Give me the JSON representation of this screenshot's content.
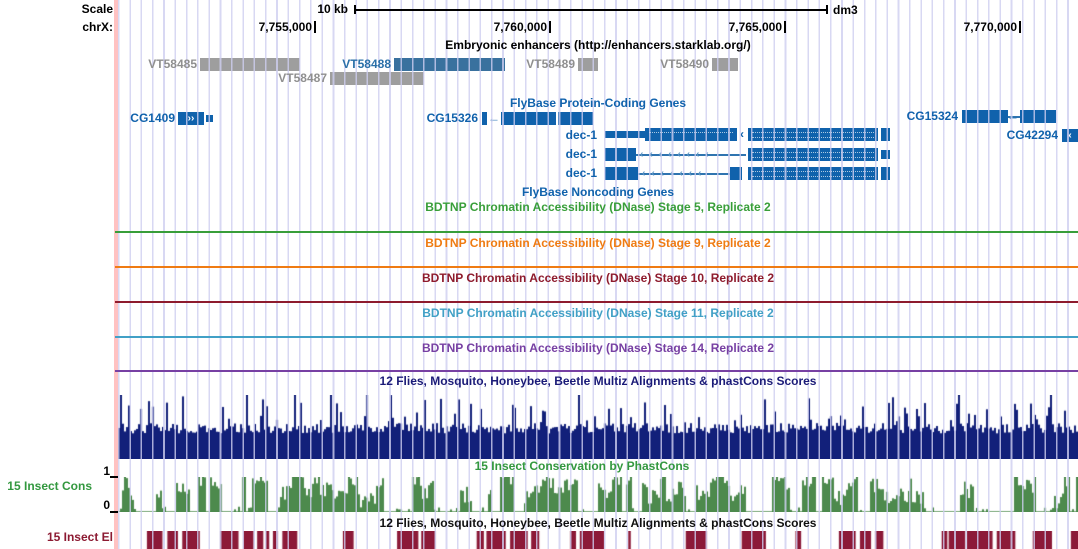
{
  "ruler": {
    "scale_label": "Scale",
    "scale_value": "10 kb",
    "assembly": "dm3",
    "chrom": "chrX:",
    "ticks": [
      {
        "label": "7,755,000"
      },
      {
        "label": "7,760,000"
      },
      {
        "label": "7,765,000"
      },
      {
        "label": "7,770,000"
      }
    ]
  },
  "enhancers": {
    "title": "Embryonic enhancers (http://enhancers.starklab.org/)",
    "items": [
      {
        "name": "VT58485"
      },
      {
        "name": "VT58488"
      },
      {
        "name": "VT58489"
      },
      {
        "name": "VT58490"
      },
      {
        "name": "VT58487"
      }
    ]
  },
  "genes": {
    "title": "FlyBase Protein-Coding Genes",
    "cg1409": "CG1409",
    "cg15326": "CG15326",
    "dec1": "dec-1",
    "cg15324": "CG15324",
    "cg42294": "CG42294"
  },
  "noncoding": {
    "title": "FlyBase Noncoding Genes"
  },
  "bdtnp": [
    {
      "title": "BDTNP Chromatin Accessibility (DNase) Stage 5, Replicate 2",
      "color": "#389E39"
    },
    {
      "title": "BDTNP Chromatin Accessibility (DNase) Stage 9, Replicate 2",
      "color": "#EF7B12"
    },
    {
      "title": "BDTNP Chromatin Accessibility (DNase) Stage 10, Replicate 2",
      "color": "#8E1B2D"
    },
    {
      "title": "BDTNP Chromatin Accessibility (DNase) Stage 11, Replicate 2",
      "color": "#41A0C6"
    },
    {
      "title": "BDTNP Chromatin Accessibility (DNase) Stage 14, Replicate 2",
      "color": "#7740A3"
    }
  ],
  "multiz_top": {
    "title": "12 Flies, Mosquito, Honeybee, Beetle Multiz Alignments & phastCons Scores"
  },
  "phastcons": {
    "title": "15 Insect Conservation by PhastCons",
    "left_label": "15 Insect Cons",
    "axis_max": "1",
    "axis_min": "0"
  },
  "multiz_bottom": {
    "title": "12 Flies, Mosquito, Honeybee, Beetle Multiz Alignments & phastCons Scores"
  },
  "elements": {
    "left_label": "15 Insect El"
  },
  "glyphs": {
    "fwd_chevrons": "››",
    "rev_chevron": "‹",
    "arrow_left": "←",
    "intron_arrows_8": "‹‹‹‹‹‹‹‹",
    "intron_arrows_7": "‹‹‹‹‹‹‹"
  },
  "render": {
    "navy": {
      "id": "hist-navy",
      "seed": 20240601,
      "barw": 2,
      "color": "#12207A",
      "base": 0.4,
      "variance": 0.16,
      "spikeP": 0.2,
      "spikeH": 0.55
    },
    "green": {
      "id": "hist-green",
      "seed": 987654,
      "barw": 2,
      "color": "#4D8A4D",
      "gapP": 0.38
    },
    "blocks": {
      "id": "blocks-maroon",
      "seed": 424242,
      "color": "#8C1A38",
      "fill": 0.6
    }
  }
}
